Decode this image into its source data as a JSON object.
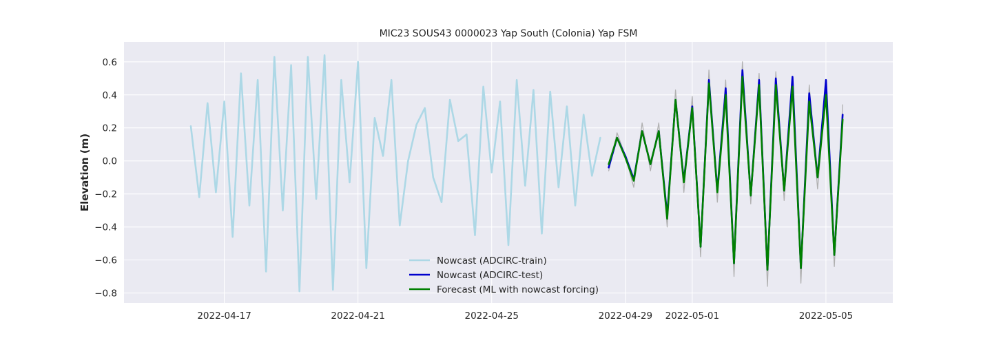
{
  "chart_data": {
    "type": "line",
    "title": "MIC23 SOUS43 0000023 Yap South (Colonia) Yap FSM",
    "xlabel": "",
    "ylabel": "Elevation (m)",
    "xlim": [
      "2022-04-14T00:00",
      "2022-05-07T00:00"
    ],
    "ylim": [
      -0.86,
      0.72
    ],
    "x_ticks": [
      "2022-04-17",
      "2022-04-21",
      "2022-04-25",
      "2022-04-29",
      "2022-05-01",
      "2022-05-05"
    ],
    "y_ticks": [
      -0.8,
      -0.6,
      -0.4,
      -0.2,
      0.0,
      0.2,
      0.4,
      0.6
    ],
    "grid": true,
    "background": "#eaeaf2",
    "legend_position": "bottom-center",
    "series": [
      {
        "name": "Nowcast (ADCIRC-train)",
        "color": "#add8e6",
        "x": [
          "2022-04-16T00:00",
          "2022-04-16T06:00",
          "2022-04-16T12:00",
          "2022-04-16T18:00",
          "2022-04-17T00:00",
          "2022-04-17T06:00",
          "2022-04-17T12:00",
          "2022-04-17T18:00",
          "2022-04-18T00:00",
          "2022-04-18T06:00",
          "2022-04-18T12:00",
          "2022-04-18T18:00",
          "2022-04-19T00:00",
          "2022-04-19T06:00",
          "2022-04-19T12:00",
          "2022-04-19T18:00",
          "2022-04-20T00:00",
          "2022-04-20T06:00",
          "2022-04-20T12:00",
          "2022-04-20T18:00",
          "2022-04-21T00:00",
          "2022-04-21T06:00",
          "2022-04-21T12:00",
          "2022-04-21T18:00",
          "2022-04-22T00:00",
          "2022-04-22T06:00",
          "2022-04-22T12:00",
          "2022-04-22T18:00",
          "2022-04-23T00:00",
          "2022-04-23T06:00",
          "2022-04-23T12:00",
          "2022-04-23T18:00",
          "2022-04-24T00:00",
          "2022-04-24T06:00",
          "2022-04-24T12:00",
          "2022-04-24T18:00",
          "2022-04-25T00:00",
          "2022-04-25T06:00",
          "2022-04-25T12:00",
          "2022-04-25T18:00",
          "2022-04-26T00:00",
          "2022-04-26T06:00",
          "2022-04-26T12:00",
          "2022-04-26T18:00",
          "2022-04-27T00:00",
          "2022-04-27T06:00",
          "2022-04-27T12:00",
          "2022-04-27T18:00",
          "2022-04-28T00:00",
          "2022-04-28T06:00"
        ],
        "y": [
          0.21,
          -0.22,
          0.35,
          -0.19,
          0.36,
          -0.46,
          0.53,
          -0.27,
          0.49,
          -0.67,
          0.63,
          -0.3,
          0.58,
          -0.79,
          0.63,
          -0.23,
          0.64,
          -0.78,
          0.49,
          -0.13,
          0.6,
          -0.65,
          0.26,
          0.03,
          0.49,
          -0.39,
          0.0,
          0.22,
          0.32,
          -0.1,
          -0.25,
          0.37,
          0.12,
          0.16,
          -0.45,
          0.45,
          -0.07,
          0.36,
          -0.51,
          0.49,
          -0.15,
          0.43,
          -0.44,
          0.42,
          -0.16,
          0.33,
          -0.27,
          0.28,
          -0.09,
          0.14
        ]
      },
      {
        "name": "",
        "color": "#b0b0b0",
        "x": [
          "2022-04-28T12:00",
          "2022-04-28T18:00",
          "2022-04-29T00:00",
          "2022-04-29T06:00",
          "2022-04-29T12:00",
          "2022-04-29T18:00",
          "2022-04-30T00:00",
          "2022-04-30T06:00",
          "2022-04-30T12:00",
          "2022-04-30T18:00",
          "2022-05-01T00:00",
          "2022-05-01T06:00",
          "2022-05-01T12:00",
          "2022-05-01T18:00",
          "2022-05-02T00:00",
          "2022-05-02T06:00",
          "2022-05-02T12:00",
          "2022-05-02T18:00",
          "2022-05-03T00:00",
          "2022-05-03T06:00",
          "2022-05-03T12:00",
          "2022-05-03T18:00",
          "2022-05-04T00:00",
          "2022-05-04T06:00",
          "2022-05-04T12:00",
          "2022-05-04T18:00",
          "2022-05-05T00:00",
          "2022-05-05T06:00",
          "2022-05-05T12:00"
        ],
        "y": [
          -0.06,
          0.17,
          0.03,
          -0.16,
          0.23,
          -0.06,
          0.23,
          -0.4,
          0.43,
          -0.19,
          0.39,
          -0.58,
          0.55,
          -0.25,
          0.49,
          -0.7,
          0.6,
          -0.26,
          0.53,
          -0.76,
          0.54,
          -0.24,
          0.46,
          -0.74,
          0.46,
          -0.17,
          0.42,
          -0.64,
          0.34
        ]
      },
      {
        "name": "Nowcast (ADCIRC-test)",
        "color": "#0000cd",
        "x": [
          "2022-04-28T12:00",
          "2022-04-28T18:00",
          "2022-04-29T00:00",
          "2022-04-29T06:00",
          "2022-04-29T12:00",
          "2022-04-29T18:00",
          "2022-04-30T00:00",
          "2022-04-30T06:00",
          "2022-04-30T12:00",
          "2022-04-30T18:00",
          "2022-05-01T00:00",
          "2022-05-01T06:00",
          "2022-05-01T12:00",
          "2022-05-01T18:00",
          "2022-05-02T00:00",
          "2022-05-02T06:00",
          "2022-05-02T12:00",
          "2022-05-02T18:00",
          "2022-05-03T00:00",
          "2022-05-03T06:00",
          "2022-05-03T12:00",
          "2022-05-03T18:00",
          "2022-05-04T00:00",
          "2022-05-04T06:00",
          "2022-05-04T12:00",
          "2022-05-04T18:00",
          "2022-05-05T00:00",
          "2022-05-05T06:00",
          "2022-05-05T12:00"
        ],
        "y": [
          -0.04,
          0.14,
          0.03,
          -0.11,
          0.18,
          -0.02,
          0.18,
          -0.33,
          0.37,
          -0.12,
          0.33,
          -0.52,
          0.49,
          -0.18,
          0.44,
          -0.62,
          0.55,
          -0.21,
          0.49,
          -0.66,
          0.5,
          -0.18,
          0.51,
          -0.65,
          0.41,
          -0.1,
          0.49,
          -0.57,
          0.28
        ]
      },
      {
        "name": "Forecast (ML with nowcast forcing)",
        "color": "#008000",
        "x": [
          "2022-04-28T12:00",
          "2022-04-28T18:00",
          "2022-04-29T00:00",
          "2022-04-29T06:00",
          "2022-04-29T12:00",
          "2022-04-29T18:00",
          "2022-04-30T00:00",
          "2022-04-30T06:00",
          "2022-04-30T12:00",
          "2022-04-30T18:00",
          "2022-05-01T00:00",
          "2022-05-01T06:00",
          "2022-05-01T12:00",
          "2022-05-01T18:00",
          "2022-05-02T00:00",
          "2022-05-02T06:00",
          "2022-05-02T12:00",
          "2022-05-02T18:00",
          "2022-05-03T00:00",
          "2022-05-03T06:00",
          "2022-05-03T12:00",
          "2022-05-03T18:00",
          "2022-05-04T00:00",
          "2022-05-04T06:00",
          "2022-05-04T12:00",
          "2022-05-04T18:00",
          "2022-05-05T00:00",
          "2022-05-05T06:00",
          "2022-05-05T12:00"
        ],
        "y": [
          -0.02,
          0.14,
          0.02,
          -0.12,
          0.18,
          -0.02,
          0.18,
          -0.35,
          0.37,
          -0.13,
          0.32,
          -0.52,
          0.47,
          -0.19,
          0.4,
          -0.62,
          0.51,
          -0.21,
          0.46,
          -0.66,
          0.46,
          -0.18,
          0.45,
          -0.65,
          0.36,
          -0.1,
          0.4,
          -0.57,
          0.25
        ]
      }
    ]
  }
}
